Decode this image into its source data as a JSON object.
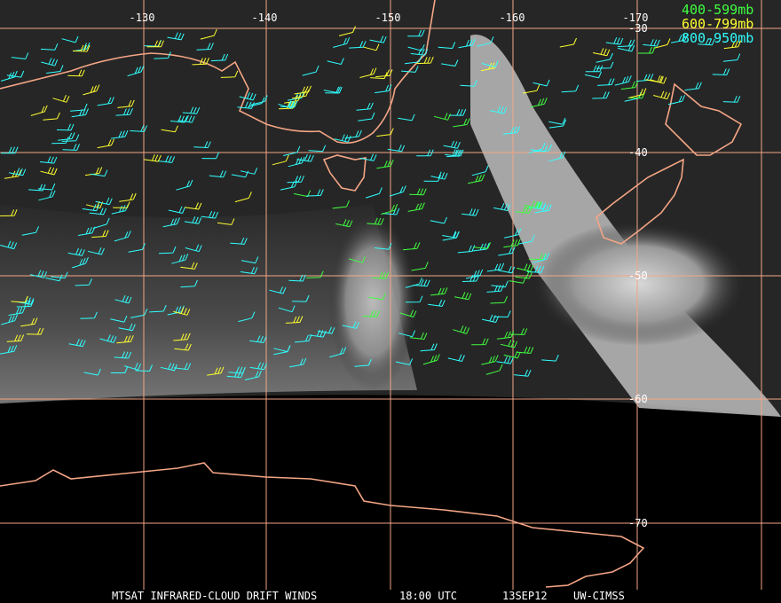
{
  "map": {
    "longitude_labels": [
      "-130",
      "-140",
      "-150",
      "-160",
      "-170"
    ],
    "latitude_labels": [
      "-30",
      "-40",
      "-50",
      "-60",
      "-70"
    ],
    "legend": [
      "400-599mb",
      "600-799mb",
      "800-950mb"
    ],
    "footer": {
      "product": "MTSAT INFRARED-CLOUD DRIFT WINDS",
      "time": "18:00 UTC",
      "date": "13SEP12",
      "source": "UW-CIMSS"
    }
  }
}
